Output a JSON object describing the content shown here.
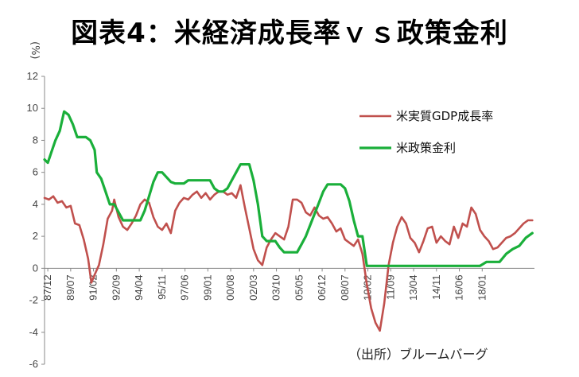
{
  "title": "図表4：米経済成長率ｖｓ政策金利",
  "unit": "(%)",
  "source": "（出所）ブルームバーグ",
  "chart_data": {
    "type": "line",
    "ylim": [
      -6,
      12
    ],
    "yticks": [
      -6,
      -4,
      -2,
      0,
      2,
      4,
      6,
      8,
      10,
      12
    ],
    "xticks": [
      "87/12",
      "89/07",
      "91/02",
      "92/09",
      "94/04",
      "95/11",
      "97/06",
      "99/01",
      "00/08",
      "02/03",
      "03/10",
      "05/05",
      "06/12",
      "08/07",
      "10/02",
      "11/09",
      "13/04",
      "14/11",
      "16/06",
      "18/01"
    ],
    "legend_position": "top-right",
    "grid": false,
    "series": [
      {
        "name": "米実質GDP成長率",
        "color": "#c0504d",
        "points": [
          [
            0,
            4.4
          ],
          [
            0.2,
            4.3
          ],
          [
            0.4,
            4.5
          ],
          [
            0.6,
            4.1
          ],
          [
            0.8,
            4.2
          ],
          [
            1,
            3.8
          ],
          [
            1.2,
            3.9
          ],
          [
            1.4,
            2.8
          ],
          [
            1.6,
            2.7
          ],
          [
            1.8,
            1.8
          ],
          [
            2,
            0.6
          ],
          [
            2.15,
            -0.9
          ],
          [
            2.3,
            -0.4
          ],
          [
            2.5,
            0.2
          ],
          [
            2.7,
            1.5
          ],
          [
            2.9,
            3.1
          ],
          [
            3.1,
            3.6
          ],
          [
            3.2,
            4.3
          ],
          [
            3.4,
            3.2
          ],
          [
            3.6,
            2.6
          ],
          [
            3.8,
            2.4
          ],
          [
            4,
            2.8
          ],
          [
            4.2,
            3.3
          ],
          [
            4.4,
            4.0
          ],
          [
            4.6,
            4.3
          ],
          [
            4.8,
            4.1
          ],
          [
            5,
            3.2
          ],
          [
            5.2,
            2.6
          ],
          [
            5.4,
            2.4
          ],
          [
            5.6,
            2.8
          ],
          [
            5.8,
            2.2
          ],
          [
            6,
            3.6
          ],
          [
            6.2,
            4.1
          ],
          [
            6.4,
            4.4
          ],
          [
            6.6,
            4.3
          ],
          [
            6.8,
            4.6
          ],
          [
            7,
            4.8
          ],
          [
            7.2,
            4.4
          ],
          [
            7.4,
            4.7
          ],
          [
            7.6,
            4.3
          ],
          [
            7.8,
            4.6
          ],
          [
            8,
            4.8
          ],
          [
            8.2,
            4.8
          ],
          [
            8.4,
            4.6
          ],
          [
            8.6,
            4.7
          ],
          [
            8.8,
            4.4
          ],
          [
            9,
            5.2
          ],
          [
            9.2,
            3.8
          ],
          [
            9.4,
            2.5
          ],
          [
            9.6,
            1.2
          ],
          [
            9.8,
            0.5
          ],
          [
            10,
            0.2
          ],
          [
            10.2,
            1.3
          ],
          [
            10.4,
            1.8
          ],
          [
            10.6,
            2.2
          ],
          [
            10.8,
            2.0
          ],
          [
            11,
            1.8
          ],
          [
            11.2,
            2.6
          ],
          [
            11.4,
            4.3
          ],
          [
            11.6,
            4.3
          ],
          [
            11.8,
            4.1
          ],
          [
            12,
            3.5
          ],
          [
            12.2,
            3.3
          ],
          [
            12.4,
            3.8
          ],
          [
            12.6,
            3.3
          ],
          [
            12.8,
            3.1
          ],
          [
            13,
            3.2
          ],
          [
            13.2,
            2.8
          ],
          [
            13.4,
            2.3
          ],
          [
            13.6,
            2.5
          ],
          [
            13.8,
            1.8
          ],
          [
            14,
            1.6
          ],
          [
            14.2,
            1.4
          ],
          [
            14.4,
            1.8
          ],
          [
            14.6,
            0.9
          ],
          [
            14.8,
            -1.0
          ],
          [
            15,
            -2.5
          ],
          [
            15.2,
            -3.4
          ],
          [
            15.4,
            -3.9
          ],
          [
            15.6,
            -2.2
          ],
          [
            15.8,
            0.2
          ],
          [
            16,
            1.6
          ],
          [
            16.2,
            2.6
          ],
          [
            16.4,
            3.2
          ],
          [
            16.6,
            2.8
          ],
          [
            16.8,
            1.9
          ],
          [
            17,
            1.6
          ],
          [
            17.2,
            1.0
          ],
          [
            17.4,
            1.7
          ],
          [
            17.6,
            2.5
          ],
          [
            17.8,
            2.6
          ],
          [
            18,
            1.6
          ],
          [
            18.2,
            2.0
          ],
          [
            18.4,
            1.7
          ],
          [
            18.6,
            1.5
          ],
          [
            18.8,
            2.6
          ],
          [
            19,
            1.9
          ],
          [
            19.2,
            2.8
          ],
          [
            19.4,
            2.6
          ],
          [
            19.6,
            3.8
          ],
          [
            19.8,
            3.4
          ],
          [
            20,
            2.4
          ],
          [
            20.2,
            2.0
          ],
          [
            20.4,
            1.7
          ],
          [
            20.6,
            1.2
          ],
          [
            20.8,
            1.3
          ],
          [
            21,
            1.6
          ],
          [
            21.2,
            1.9
          ],
          [
            21.4,
            2.0
          ],
          [
            21.6,
            2.2
          ],
          [
            21.8,
            2.5
          ],
          [
            22,
            2.8
          ],
          [
            22.2,
            3.0
          ],
          [
            22.4,
            3.0
          ]
        ]
      },
      {
        "name": "米政策金利",
        "color": "#1aaf3a",
        "points": [
          [
            0,
            6.8
          ],
          [
            0.15,
            6.6
          ],
          [
            0.3,
            7.2
          ],
          [
            0.5,
            8.0
          ],
          [
            0.7,
            8.6
          ],
          [
            0.9,
            9.8
          ],
          [
            1.1,
            9.6
          ],
          [
            1.3,
            9.0
          ],
          [
            1.5,
            8.2
          ],
          [
            1.7,
            8.2
          ],
          [
            1.9,
            8.2
          ],
          [
            2.1,
            8.0
          ],
          [
            2.3,
            7.4
          ],
          [
            2.4,
            6.0
          ],
          [
            2.6,
            5.6
          ],
          [
            2.8,
            4.8
          ],
          [
            3,
            4.0
          ],
          [
            3.2,
            4.0
          ],
          [
            3.4,
            3.5
          ],
          [
            3.6,
            3.0
          ],
          [
            3.8,
            3.0
          ],
          [
            4,
            3.0
          ],
          [
            4.2,
            3.0
          ],
          [
            4.4,
            3.0
          ],
          [
            4.6,
            3.6
          ],
          [
            4.8,
            4.5
          ],
          [
            5,
            5.4
          ],
          [
            5.2,
            6.0
          ],
          [
            5.4,
            6.0
          ],
          [
            5.6,
            5.7
          ],
          [
            5.8,
            5.4
          ],
          [
            6,
            5.3
          ],
          [
            6.2,
            5.3
          ],
          [
            6.4,
            5.3
          ],
          [
            6.6,
            5.5
          ],
          [
            6.8,
            5.5
          ],
          [
            7,
            5.5
          ],
          [
            7.2,
            5.5
          ],
          [
            7.4,
            5.5
          ],
          [
            7.6,
            5.5
          ],
          [
            7.8,
            5.0
          ],
          [
            8,
            4.8
          ],
          [
            8.2,
            4.8
          ],
          [
            8.4,
            5.0
          ],
          [
            8.6,
            5.5
          ],
          [
            8.8,
            6.0
          ],
          [
            9,
            6.5
          ],
          [
            9.2,
            6.5
          ],
          [
            9.4,
            6.5
          ],
          [
            9.6,
            5.5
          ],
          [
            9.8,
            4.0
          ],
          [
            10,
            2.0
          ],
          [
            10.2,
            1.7
          ],
          [
            10.4,
            1.7
          ],
          [
            10.6,
            1.7
          ],
          [
            10.8,
            1.3
          ],
          [
            11,
            1.0
          ],
          [
            11.2,
            1.0
          ],
          [
            11.4,
            1.0
          ],
          [
            11.6,
            1.0
          ],
          [
            11.8,
            1.5
          ],
          [
            12,
            2.0
          ],
          [
            12.2,
            2.7
          ],
          [
            12.4,
            3.4
          ],
          [
            12.6,
            4.1
          ],
          [
            12.8,
            4.8
          ],
          [
            13,
            5.25
          ],
          [
            13.2,
            5.25
          ],
          [
            13.4,
            5.25
          ],
          [
            13.6,
            5.25
          ],
          [
            13.8,
            5.0
          ],
          [
            14,
            4.2
          ],
          [
            14.2,
            3.0
          ],
          [
            14.4,
            2.0
          ],
          [
            14.6,
            2.0
          ],
          [
            14.8,
            0.15
          ],
          [
            15,
            0.15
          ],
          [
            15.4,
            0.15
          ],
          [
            16,
            0.15
          ],
          [
            17,
            0.15
          ],
          [
            18,
            0.15
          ],
          [
            19,
            0.15
          ],
          [
            20,
            0.15
          ],
          [
            20.3,
            0.4
          ],
          [
            20.6,
            0.4
          ],
          [
            20.9,
            0.4
          ],
          [
            21.2,
            0.9
          ],
          [
            21.5,
            1.2
          ],
          [
            21.8,
            1.4
          ],
          [
            22.1,
            1.9
          ],
          [
            22.4,
            2.2
          ]
        ]
      }
    ]
  }
}
